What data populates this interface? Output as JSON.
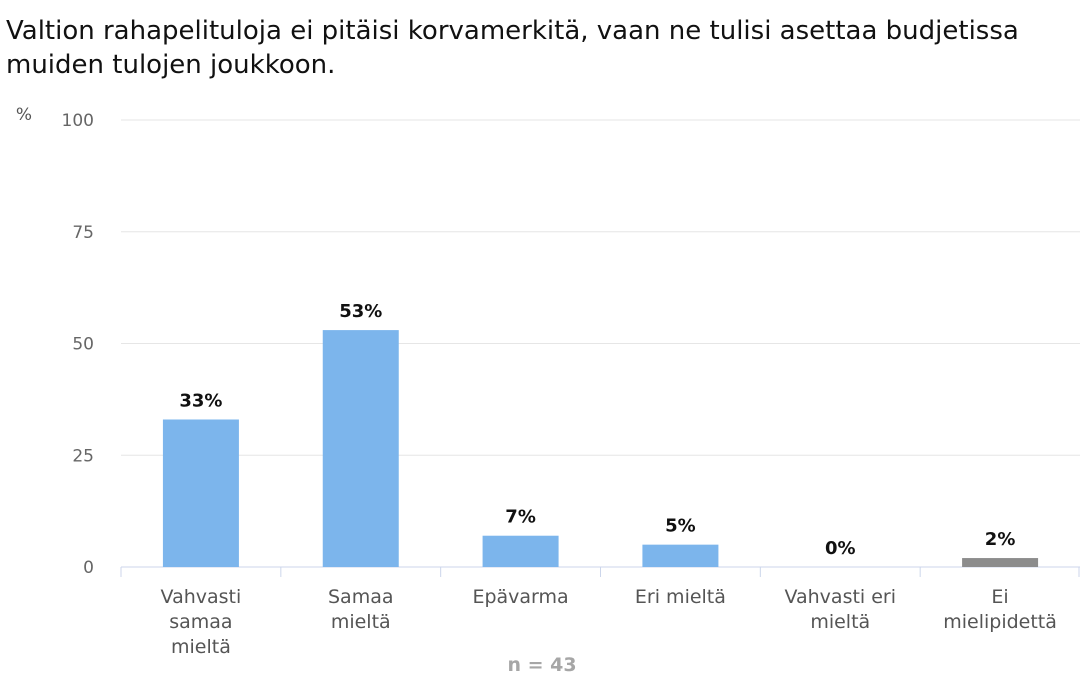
{
  "chart_data": {
    "type": "bar",
    "title": "Valtion rahapelituloja ei pitäisi korvamerkitä, vaan ne tulisi asettaa budjetissa muiden tulojen joukkoon.",
    "ylabel": "%",
    "ylim": [
      0,
      100
    ],
    "yticks": [
      0,
      25,
      50,
      75,
      100
    ],
    "categories": [
      [
        "Vahvasti",
        "samaa",
        "mieltä"
      ],
      [
        "Samaa",
        "mieltä"
      ],
      [
        "Epävarma"
      ],
      [
        "Eri mieltä"
      ],
      [
        "Vahvasti eri",
        "mieltä"
      ],
      [
        "Ei",
        "mielipidettä"
      ]
    ],
    "values": [
      33,
      53,
      7,
      5,
      0,
      2
    ],
    "data_labels": [
      "33%",
      "53%",
      "7%",
      "5%",
      "0%",
      "2%"
    ],
    "bar_colors": [
      "#7cb5ec",
      "#7cb5ec",
      "#7cb5ec",
      "#7cb5ec",
      "#7cb5ec",
      "#8c8c8c"
    ],
    "grid": true,
    "footer": "n = 43"
  }
}
